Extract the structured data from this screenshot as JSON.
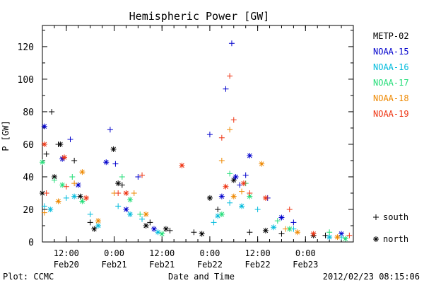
{
  "chart_data": {
    "type": "scatter",
    "title": "Hemispheric Power [GW]",
    "ylabel": "P [GW]",
    "xlabel": "Date and Time",
    "ylim": [
      0,
      133
    ],
    "yticks": [
      0,
      20,
      40,
      60,
      80,
      100,
      120
    ],
    "xlim": [
      "2012-02-20 06:00",
      "2012-02-23 12:00"
    ],
    "xticks": [
      {
        "time": "2012-02-20 12:00",
        "label": "12:00",
        "date": "Feb20"
      },
      {
        "time": "2012-02-21 00:00",
        "label": "0:00",
        "date": "Feb21"
      },
      {
        "time": "2012-02-21 12:00",
        "label": "12:00",
        "date": "Feb21"
      },
      {
        "time": "2012-02-22 00:00",
        "label": "0:00",
        "date": "Feb22"
      },
      {
        "time": "2012-02-22 12:00",
        "label": "12:00",
        "date": "Feb22"
      },
      {
        "time": "2012-02-23 00:00",
        "label": "0:00",
        "date": "Feb23"
      }
    ],
    "grid": false,
    "legend_position": "right",
    "marker_key": [
      {
        "symbol": "+",
        "label": "south"
      },
      {
        "symbol": "*",
        "label": "north"
      }
    ],
    "series": [
      {
        "name": "METP-02",
        "color": "#000000",
        "south": [
          [
            "2012-02-20 07:00",
            54
          ],
          [
            "2012-02-20 08:20",
            80
          ],
          [
            "2012-02-20 10:00",
            60
          ],
          [
            "2012-02-20 14:00",
            50
          ],
          [
            "2012-02-20 18:00",
            12
          ],
          [
            "2012-02-21 02:00",
            35
          ],
          [
            "2012-02-21 09:00",
            12
          ],
          [
            "2012-02-21 14:00",
            7
          ],
          [
            "2012-02-21 20:00",
            6
          ],
          [
            "2012-02-22 02:00",
            20
          ],
          [
            "2012-02-22 10:00",
            6
          ],
          [
            "2012-02-22 18:00",
            5
          ],
          [
            "2012-02-23 05:00",
            4
          ]
        ],
        "north": [
          [
            "2012-02-20 06:00",
            30
          ],
          [
            "2012-02-20 09:00",
            40
          ],
          [
            "2012-02-20 10:30",
            60
          ],
          [
            "2012-02-20 15:30",
            28
          ],
          [
            "2012-02-20 19:00",
            8
          ],
          [
            "2012-02-20 23:50",
            57
          ],
          [
            "2012-02-21 01:00",
            36
          ],
          [
            "2012-02-21 08:00",
            10
          ],
          [
            "2012-02-21 13:00",
            8
          ],
          [
            "2012-02-21 22:00",
            5
          ],
          [
            "2012-02-22 00:00",
            27
          ],
          [
            "2012-02-22 06:00",
            38
          ],
          [
            "2012-02-22 14:00",
            7
          ],
          [
            "2012-02-23 02:00",
            4
          ]
        ]
      },
      {
        "name": "NOAA-15",
        "color": "#0000cc",
        "south": [
          [
            "2012-02-20 13:00",
            63
          ],
          [
            "2012-02-20 23:00",
            69
          ],
          [
            "2012-02-21 00:20",
            48
          ],
          [
            "2012-02-21 06:00",
            40
          ],
          [
            "2012-02-22 00:00",
            66
          ],
          [
            "2012-02-22 04:00",
            94
          ],
          [
            "2012-02-22 05:30",
            122
          ],
          [
            "2012-02-22 07:30",
            35
          ],
          [
            "2012-02-22 09:00",
            41
          ],
          [
            "2012-02-22 14:30",
            27
          ],
          [
            "2012-02-22 21:00",
            12
          ]
        ],
        "north": [
          [
            "2012-02-20 06:30",
            71
          ],
          [
            "2012-02-20 11:00",
            51
          ],
          [
            "2012-02-20 15:00",
            35
          ],
          [
            "2012-02-20 22:00",
            49
          ],
          [
            "2012-02-21 03:00",
            20
          ],
          [
            "2012-02-21 10:00",
            8
          ],
          [
            "2012-02-22 03:00",
            28
          ],
          [
            "2012-02-22 06:30",
            40
          ],
          [
            "2012-02-22 10:00",
            53
          ],
          [
            "2012-02-22 18:00",
            15
          ],
          [
            "2012-02-23 09:00",
            5
          ]
        ]
      },
      {
        "name": "NOAA-16",
        "color": "#00bbdd",
        "south": [
          [
            "2012-02-20 06:30",
            22
          ],
          [
            "2012-02-20 12:00",
            27
          ],
          [
            "2012-02-20 18:00",
            17
          ],
          [
            "2012-02-21 01:00",
            22
          ],
          [
            "2012-02-21 07:00",
            14
          ],
          [
            "2012-02-22 01:00",
            12
          ],
          [
            "2012-02-22 05:00",
            24
          ],
          [
            "2012-02-22 12:00",
            20
          ],
          [
            "2012-02-22 21:00",
            8
          ],
          [
            "2012-02-23 09:00",
            3
          ]
        ],
        "north": [
          [
            "2012-02-20 08:00",
            20
          ],
          [
            "2012-02-20 14:00",
            28
          ],
          [
            "2012-02-20 20:00",
            10
          ],
          [
            "2012-02-21 04:00",
            17
          ],
          [
            "2012-02-21 11:00",
            6
          ],
          [
            "2012-02-22 02:00",
            16
          ],
          [
            "2012-02-22 08:00",
            22
          ],
          [
            "2012-02-22 16:00",
            9
          ],
          [
            "2012-02-23 06:00",
            3
          ]
        ]
      },
      {
        "name": "NOAA-17",
        "color": "#22dd77",
        "south": [
          [
            "2012-02-20 09:00",
            38
          ],
          [
            "2012-02-20 13:30",
            40
          ],
          [
            "2012-02-21 02:00",
            40
          ],
          [
            "2012-02-21 06:30",
            17
          ],
          [
            "2012-02-22 05:00",
            42
          ],
          [
            "2012-02-22 09:00",
            36
          ],
          [
            "2012-02-22 17:00",
            13
          ],
          [
            "2012-02-23 06:00",
            6
          ]
        ],
        "north": [
          [
            "2012-02-20 06:00",
            49
          ],
          [
            "2012-02-20 11:00",
            35
          ],
          [
            "2012-02-20 16:00",
            25
          ],
          [
            "2012-02-21 04:00",
            26
          ],
          [
            "2012-02-21 12:00",
            5
          ],
          [
            "2012-02-22 03:00",
            17
          ],
          [
            "2012-02-22 10:00",
            28
          ],
          [
            "2012-02-22 20:00",
            8
          ],
          [
            "2012-02-23 10:00",
            2
          ]
        ]
      },
      {
        "name": "NOAA-18",
        "color": "#ee8800",
        "south": [
          [
            "2012-02-20 06:30",
            18
          ],
          [
            "2012-02-20 14:00",
            36
          ],
          [
            "2012-02-21 00:00",
            30
          ],
          [
            "2012-02-21 05:00",
            30
          ],
          [
            "2012-02-22 03:00",
            50
          ],
          [
            "2012-02-22 05:00",
            69
          ],
          [
            "2012-02-22 08:00",
            31
          ],
          [
            "2012-02-22 19:00",
            8
          ]
        ],
        "north": [
          [
            "2012-02-20 10:00",
            25
          ],
          [
            "2012-02-20 16:00",
            43
          ],
          [
            "2012-02-20 20:00",
            13
          ],
          [
            "2012-02-21 08:00",
            17
          ],
          [
            "2012-02-22 06:00",
            28
          ],
          [
            "2012-02-22 13:00",
            48
          ],
          [
            "2012-02-22 22:00",
            6
          ],
          [
            "2012-02-23 08:00",
            3
          ]
        ]
      },
      {
        "name": "NOAA-19",
        "color": "#ee3311",
        "south": [
          [
            "2012-02-20 07:00",
            30
          ],
          [
            "2012-02-20 12:00",
            34
          ],
          [
            "2012-02-21 01:00",
            30
          ],
          [
            "2012-02-21 07:00",
            41
          ],
          [
            "2012-02-22 03:00",
            64
          ],
          [
            "2012-02-22 05:00",
            102
          ],
          [
            "2012-02-22 06:00",
            75
          ],
          [
            "2012-02-22 10:00",
            30
          ],
          [
            "2012-02-22 20:00",
            20
          ],
          [
            "2012-02-23 11:00",
            4
          ]
        ],
        "north": [
          [
            "2012-02-20 06:30",
            60
          ],
          [
            "2012-02-20 11:30",
            52
          ],
          [
            "2012-02-20 17:00",
            27
          ],
          [
            "2012-02-21 03:00",
            30
          ],
          [
            "2012-02-21 17:00",
            47
          ],
          [
            "2012-02-22 04:00",
            34
          ],
          [
            "2012-02-22 08:30",
            36
          ],
          [
            "2012-02-22 14:00",
            27
          ],
          [
            "2012-02-23 02:00",
            5
          ]
        ]
      }
    ]
  },
  "footer": {
    "left": "Plot: CCMC",
    "right": "2012/02/23 08:15:06"
  }
}
